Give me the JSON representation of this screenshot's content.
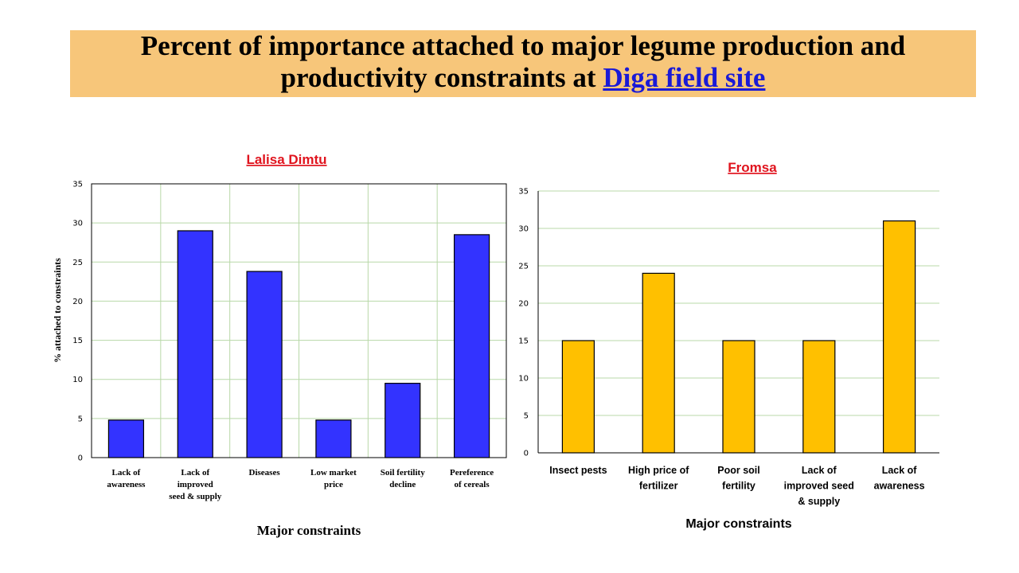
{
  "slide": {
    "title_main": "Percent of importance attached to major legume production and productivity constraints  at ",
    "title_link": "Diga field site"
  },
  "chart_data": [
    {
      "type": "bar",
      "title": "Lalisa Dimtu",
      "categories": [
        [
          "Lack of",
          "awareness"
        ],
        [
          "Lack of",
          "improved",
          "seed & supply"
        ],
        [
          "Diseases"
        ],
        [
          "Low market",
          "price"
        ],
        [
          "Soil fertility",
          "decline"
        ],
        [
          "Pereference",
          "of cereals"
        ]
      ],
      "values": [
        4.8,
        29,
        23.8,
        4.8,
        9.5,
        28.5
      ],
      "xlabel": "Major constraints",
      "ylabel": "% attached to constraints",
      "ylim": [
        0,
        35
      ],
      "yticks": [
        0,
        5,
        10,
        15,
        20,
        25,
        30,
        35
      ],
      "bar_color": "#3333ff",
      "grid": "both",
      "grid_color": "#b8d8a8"
    },
    {
      "type": "bar",
      "title": "Fromsa",
      "categories": [
        [
          "Insect pests"
        ],
        [
          "High price of",
          "fertilizer"
        ],
        [
          "Poor soil",
          "fertility"
        ],
        [
          "Lack of",
          "improved seed",
          "& supply"
        ],
        [
          "Lack of",
          "awareness"
        ]
      ],
      "values": [
        15,
        24,
        15,
        15,
        31
      ],
      "xlabel": "Major constraints",
      "ylabel": "",
      "ylim": [
        0,
        35
      ],
      "yticks": [
        0,
        5,
        10,
        15,
        20,
        25,
        30,
        35
      ],
      "bar_color": "#ffc000",
      "grid": "horizontal",
      "grid_color": "#b8d8a8"
    }
  ]
}
